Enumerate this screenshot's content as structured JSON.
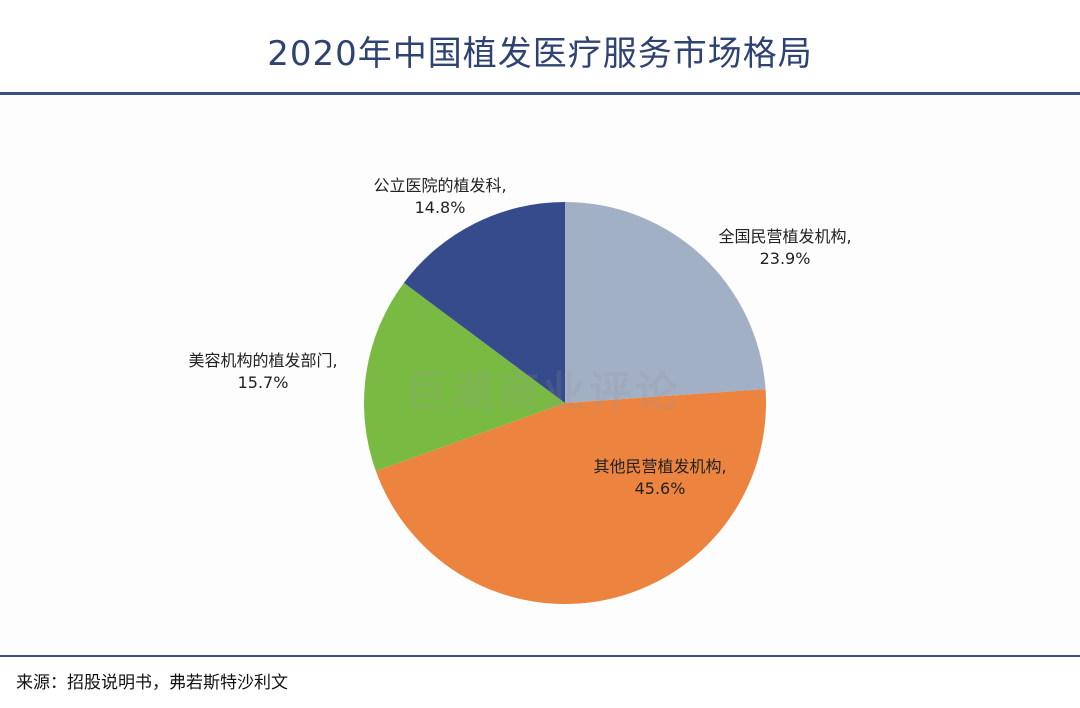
{
  "title": "2020年中国植发医疗服务市场格局",
  "source": "来源：招股说明书，弗若斯特沙利文",
  "watermark": "巨潮商业评论",
  "chart_data": {
    "type": "pie",
    "title": "2020年中国植发医疗服务市场格局",
    "slices": [
      {
        "label": "全国民营植发机构,",
        "percent_text": "23.9%",
        "value": 23.9,
        "color": "#a2b0c5"
      },
      {
        "label": "其他民营植发机构,",
        "percent_text": "45.6%",
        "value": 45.6,
        "color": "#ec8440"
      },
      {
        "label": "美容机构的植发部门,",
        "percent_text": "15.7%",
        "value": 15.7,
        "color": "#79bb42"
      },
      {
        "label": "公立医院的植发科,",
        "percent_text": "14.8%",
        "value": 14.8,
        "color": "#364b8b"
      }
    ]
  }
}
